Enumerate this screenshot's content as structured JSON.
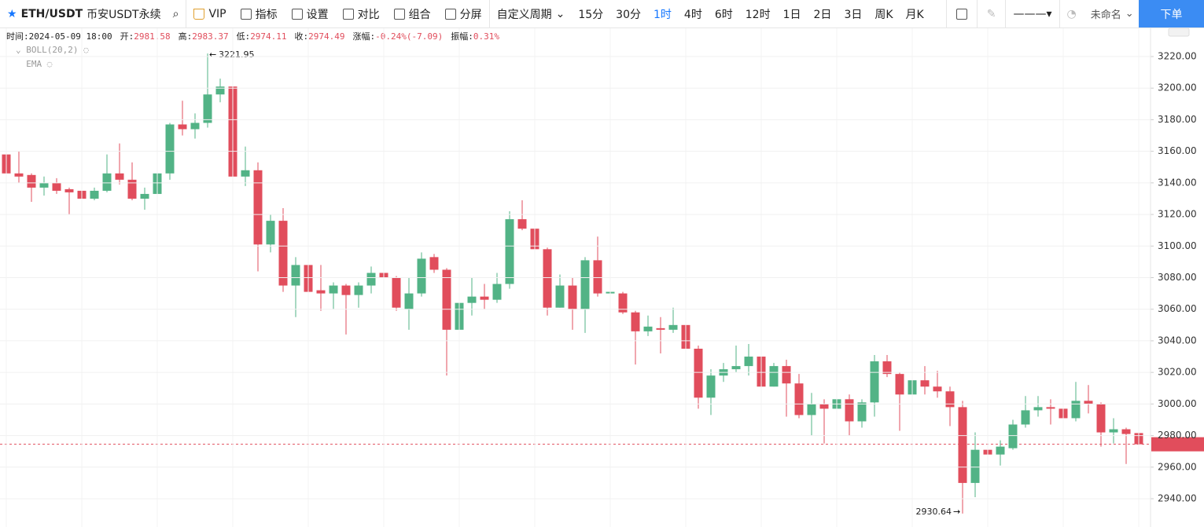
{
  "toolbar": {
    "symbol": "ETH/USDT",
    "market": "币安USDT永续",
    "buttons": [
      "VIP",
      "指标",
      "设置",
      "对比",
      "组合",
      "分屏"
    ],
    "custom_period": "自定义周期",
    "periods": [
      "15分",
      "30分",
      "1时",
      "4时",
      "6时",
      "12时",
      "1日",
      "2日",
      "3日",
      "周K",
      "月K"
    ],
    "active_period": "1时",
    "layout_name": "未命名",
    "order_button": "下单"
  },
  "info_bar": [
    {
      "label": "时间:",
      "value": "2024-05-09 18:00"
    },
    {
      "label": "开:",
      "value": "2981.58"
    },
    {
      "label": "高:",
      "value": "2983.37"
    },
    {
      "label": "低:",
      "value": "2974.11"
    },
    {
      "label": "收:",
      "value": "2974.49"
    },
    {
      "label": "涨幅:",
      "value": "-0.24%(-7.09)"
    },
    {
      "label": "振幅:",
      "value": "0.31%"
    }
  ],
  "indicators": [
    "BOLL(20,2)",
    "EMA"
  ],
  "chart_data": {
    "type": "candlestick",
    "up_color": "#52b386",
    "down_color": "#e14d5c",
    "open": [
      3158,
      3146,
      3145,
      3137,
      3140,
      3136,
      3135,
      3130,
      3135,
      3146,
      3142,
      3130,
      3133,
      3146,
      3177,
      3174,
      3178,
      3196,
      3201,
      3144,
      3148,
      3101,
      3116,
      3075,
      3088,
      3072,
      3070,
      3075,
      3069,
      3075,
      3083,
      3080,
      3060,
      3070,
      3093,
      3085,
      3047,
      3064,
      3068,
      3066,
      3076,
      3117,
      3111,
      3098,
      3061,
      3075,
      3060,
      3091,
      3070,
      3070,
      3058,
      3046,
      3048,
      3047,
      3050,
      3035,
      3004,
      3018,
      3022,
      3024,
      3030,
      3011,
      3024,
      3013,
      2993,
      3000,
      2997,
      3003,
      2989,
      3001,
      3027,
      3019,
      3006,
      3015,
      3011,
      3008,
      2998,
      2950,
      2971,
      2968,
      2972,
      2987,
      2996,
      2998,
      2997,
      2991,
      3002,
      3000,
      2982,
      2984,
      2981.58
    ],
    "high": [
      3165,
      3160,
      3146,
      3144,
      3143,
      3137,
      3136,
      3137,
      3158,
      3165,
      3153,
      3137,
      3148,
      3178,
      3192,
      3184,
      3221.95,
      3206,
      3202,
      3163,
      3153,
      3120,
      3124,
      3093,
      3096,
      3088,
      3077,
      3076,
      3077,
      3087,
      3085,
      3081,
      3080,
      3096,
      3095,
      3086,
      3071,
      3080,
      3076,
      3083,
      3122,
      3129,
      3113,
      3099,
      3082,
      3080,
      3093,
      3106,
      3080,
      3071,
      3059,
      3056,
      3055,
      3061,
      3052,
      3037,
      3022,
      3026,
      3037,
      3038,
      3031,
      3026,
      3028,
      3019,
      3007,
      3003,
      3011,
      3006,
      3003,
      3031,
      3031,
      3020,
      3017,
      3024,
      3021,
      3011,
      3002,
      2982,
      2975,
      2977,
      2990,
      3005,
      3005,
      3003,
      3002,
      3014,
      3012,
      3001,
      2991,
      2985,
      2983.37
    ],
    "low": [
      3141,
      3140,
      3128,
      3132,
      3133,
      3120,
      3125,
      3129,
      3134,
      3139,
      3129,
      3123,
      3126,
      3142,
      3170,
      3168,
      3175,
      3191,
      3129,
      3138,
      3084,
      3096,
      3071,
      3055,
      3065,
      3059,
      3060,
      3044,
      3061,
      3070,
      3079,
      3059,
      3047,
      3068,
      3083,
      3018,
      3042,
      3056,
      3060,
      3064,
      3073,
      3110,
      3096,
      3056,
      3061,
      3047,
      3045,
      3068,
      3060,
      3057,
      3025,
      3043,
      3032,
      3045,
      3034,
      2997,
      2993,
      3014,
      3020,
      3018,
      2997,
      3011,
      2992,
      2991,
      2980,
      2975,
      2991,
      2980,
      2985,
      2992,
      3017,
      2983,
      2993,
      3006,
      3004,
      2986,
      2930.64,
      2941,
      2951,
      2961,
      2971,
      2985,
      2992,
      2987,
      2989,
      2989,
      2994,
      2973,
      2975,
      2962,
      2974.11
    ],
    "close": [
      3146,
      3144,
      3137,
      3140,
      3135,
      3134,
      3130,
      3135,
      3146,
      3142,
      3130,
      3133,
      3146,
      3177,
      3174,
      3178,
      3196,
      3201,
      3144,
      3148,
      3101,
      3116,
      3075,
      3088,
      3071,
      3070,
      3075,
      3069,
      3075,
      3083,
      3080,
      3061,
      3070,
      3092,
      3085,
      3047,
      3064,
      3068,
      3066,
      3076,
      3117,
      3111,
      3098,
      3061,
      3075,
      3060,
      3091,
      3070,
      3071,
      3058,
      3046,
      3049,
      3047,
      3050,
      3035,
      3004,
      3018,
      3022,
      3024,
      3030,
      3011,
      3024,
      3013,
      2993,
      3000,
      2997,
      3003,
      2989,
      3001,
      3027,
      3019,
      3006,
      3015,
      3011,
      3008,
      2998,
      2950,
      2971,
      2968,
      2973,
      2987,
      2996,
      2998,
      2997,
      2991,
      3002,
      3000,
      2982,
      2984,
      2981,
      2974.49
    ],
    "ylim": [
      2922.1,
      3237.9
    ],
    "yticks": [
      {
        "value": 2940,
        "label": "2940.00"
      },
      {
        "value": 2960,
        "label": "2960.00"
      },
      {
        "value": 2980,
        "label": "2980.00"
      },
      {
        "value": 3000,
        "label": "3000.00"
      },
      {
        "value": 3020,
        "label": "3020.00"
      },
      {
        "value": 3040,
        "label": "3040.00"
      },
      {
        "value": 3060,
        "label": "3060.00"
      },
      {
        "value": 3080,
        "label": "3080.00"
      },
      {
        "value": 3100,
        "label": "3100.00"
      },
      {
        "value": 3120,
        "label": "3120.00"
      },
      {
        "value": 3140,
        "label": "3140.00"
      },
      {
        "value": 3160,
        "label": "3160.00"
      },
      {
        "value": 3180,
        "label": "3180.00"
      },
      {
        "value": 3200,
        "label": "3200.00"
      },
      {
        "value": 3220,
        "label": "3220.00"
      }
    ],
    "grid": true
  }
}
